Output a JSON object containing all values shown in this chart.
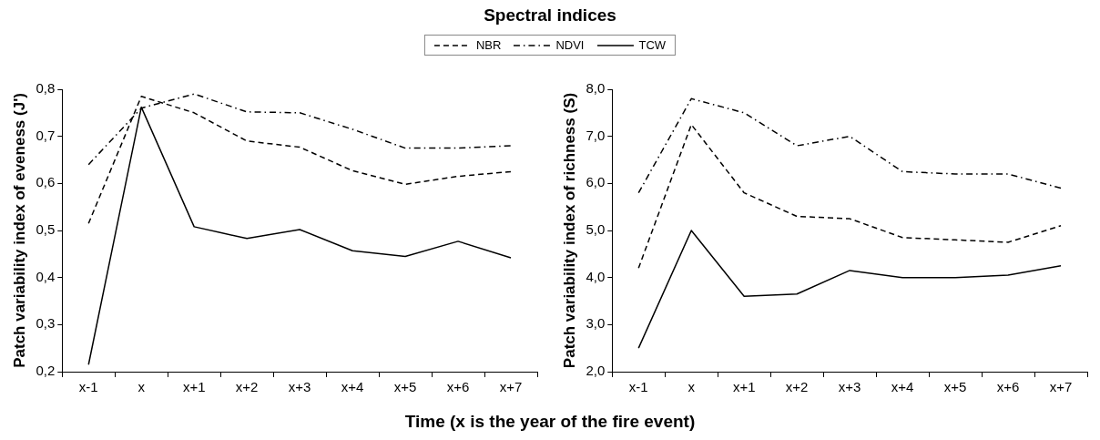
{
  "chart_data": [
    {
      "type": "line",
      "title": "Spectral indices",
      "xlabel": "Time (x is the year of the fire event)",
      "ylabel": "Patch variability index of eveness (J')",
      "legend": "top",
      "grid": false,
      "marker": "none",
      "categories": [
        "x-1",
        "x",
        "x+1",
        "x+2",
        "x+3",
        "x+4",
        "x+5",
        "x+6",
        "x+7"
      ],
      "ylim": [
        0.2,
        0.8
      ],
      "yticks": [
        {
          "value": 0.2,
          "label": "0,2"
        },
        {
          "value": 0.3,
          "label": "0,3"
        },
        {
          "value": 0.4,
          "label": "0,4"
        },
        {
          "value": 0.5,
          "label": "0,5"
        },
        {
          "value": 0.6,
          "label": "0,6"
        },
        {
          "value": 0.7,
          "label": "0,7"
        },
        {
          "value": 0.8,
          "label": "0,8"
        }
      ],
      "series": [
        {
          "name": "NBR",
          "color": "#000000",
          "line_style": "dashed",
          "values": [
            0.515,
            0.785,
            0.75,
            0.69,
            0.677,
            0.627,
            0.598,
            0.615,
            0.625
          ]
        },
        {
          "name": "NDVI",
          "color": "#000000",
          "line_style": "dotted",
          "values": [
            0.64,
            0.76,
            0.79,
            0.752,
            0.75,
            0.715,
            0.675,
            0.675,
            0.68
          ]
        },
        {
          "name": "TCW",
          "color": "#000000",
          "line_style": "solid",
          "values": [
            0.215,
            0.762,
            0.508,
            0.483,
            0.502,
            0.457,
            0.445,
            0.477,
            0.442
          ]
        }
      ]
    },
    {
      "type": "line",
      "ylabel": "Patch variability index of richness (S)",
      "legend": false,
      "grid": false,
      "marker": "none",
      "categories": [
        "x-1",
        "x",
        "x+1",
        "x+2",
        "x+3",
        "x+4",
        "x+5",
        "x+6",
        "x+7"
      ],
      "ylim": [
        2,
        8
      ],
      "yticks": [
        {
          "value": 2,
          "label": "2,0"
        },
        {
          "value": 3,
          "label": "3,0"
        },
        {
          "value": 4,
          "label": "4,0"
        },
        {
          "value": 5,
          "label": "5,0"
        },
        {
          "value": 6,
          "label": "6,0"
        },
        {
          "value": 7,
          "label": "7,0"
        },
        {
          "value": 8,
          "label": "8,0"
        }
      ],
      "series": [
        {
          "color": "#000000",
          "line_style": "dashed",
          "values": [
            4.2,
            7.25,
            5.8,
            5.3,
            5.25,
            4.85,
            4.8,
            4.75,
            5.1
          ]
        },
        {
          "color": "#000000",
          "line_style": "dotted",
          "values": [
            5.8,
            7.8,
            7.5,
            6.8,
            7.0,
            6.25,
            6.2,
            6.2,
            5.9
          ]
        },
        {
          "color": "#000000",
          "line_style": "solid",
          "values": [
            2.5,
            5.0,
            3.6,
            3.65,
            4.15,
            4.0,
            4.0,
            4.05,
            4.25
          ]
        }
      ]
    }
  ]
}
